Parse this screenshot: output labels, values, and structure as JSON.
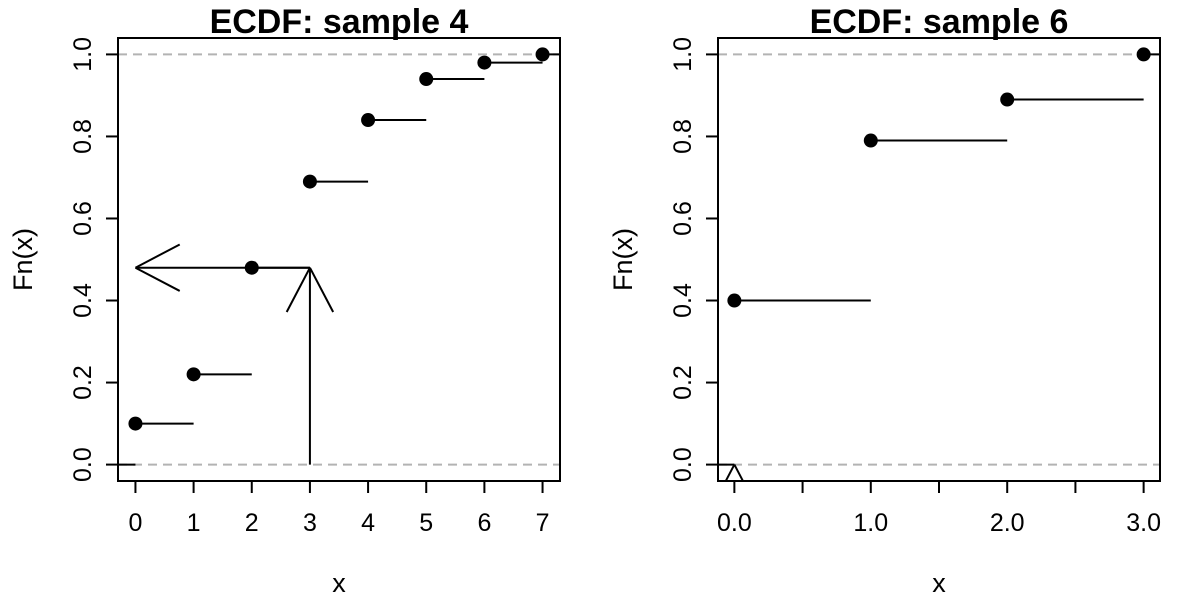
{
  "chart_data": [
    {
      "type": "step",
      "title": "ECDF: sample 4",
      "xlabel": "x",
      "ylabel": "Fn(x)",
      "xlim": [
        -0.3,
        7.3
      ],
      "ylim": [
        -0.04,
        1.04
      ],
      "x_ticks": [
        0,
        1,
        2,
        3,
        4,
        5,
        6,
        7
      ],
      "x_tick_labels": [
        "0",
        "1",
        "2",
        "3",
        "4",
        "5",
        "6",
        "7"
      ],
      "y_ticks": [
        0,
        0.2,
        0.4,
        0.6,
        0.8,
        1.0
      ],
      "y_tick_labels": [
        "0.0",
        "0.2",
        "0.4",
        "0.6",
        "0.8",
        "1.0"
      ],
      "reference_lines_y": [
        0,
        1
      ],
      "x": [
        0,
        1,
        2,
        3,
        4,
        5,
        6,
        7
      ],
      "y": [
        0.1,
        0.22,
        0.48,
        0.69,
        0.84,
        0.94,
        0.98,
        1.0
      ],
      "annotations": [
        {
          "type": "arrow",
          "from": [
            3,
            0
          ],
          "to": [
            3,
            0.48
          ]
        },
        {
          "type": "arrow",
          "from": [
            3,
            0.48
          ],
          "to": [
            0,
            0.48
          ]
        }
      ]
    },
    {
      "type": "step",
      "title": "ECDF: sample 6",
      "xlabel": "x",
      "ylabel": "Fn(x)",
      "xlim": [
        -0.12,
        3.12
      ],
      "ylim": [
        -0.04,
        1.04
      ],
      "x_ticks": [
        0,
        0.5,
        1.0,
        1.5,
        2.0,
        2.5,
        3.0
      ],
      "x_tick_labels": [
        "0.0",
        "",
        "1.0",
        "",
        "2.0",
        "",
        "3.0"
      ],
      "y_ticks": [
        0,
        0.2,
        0.4,
        0.6,
        0.8,
        1.0
      ],
      "y_tick_labels": [
        "0.0",
        "0.2",
        "0.4",
        "0.6",
        "0.8",
        "1.0"
      ],
      "reference_lines_y": [
        0,
        1
      ],
      "x": [
        0,
        1,
        2,
        3
      ],
      "y": [
        0.4,
        0.79,
        0.89,
        1.0
      ],
      "annotations": [
        {
          "type": "arrow",
          "from": [
            0,
            0
          ],
          "to": [
            0,
            0
          ]
        }
      ]
    }
  ],
  "colors": {
    "points": "#000000",
    "steps": "#000000",
    "reference": "#b3b3b3",
    "axes": "#000000"
  }
}
